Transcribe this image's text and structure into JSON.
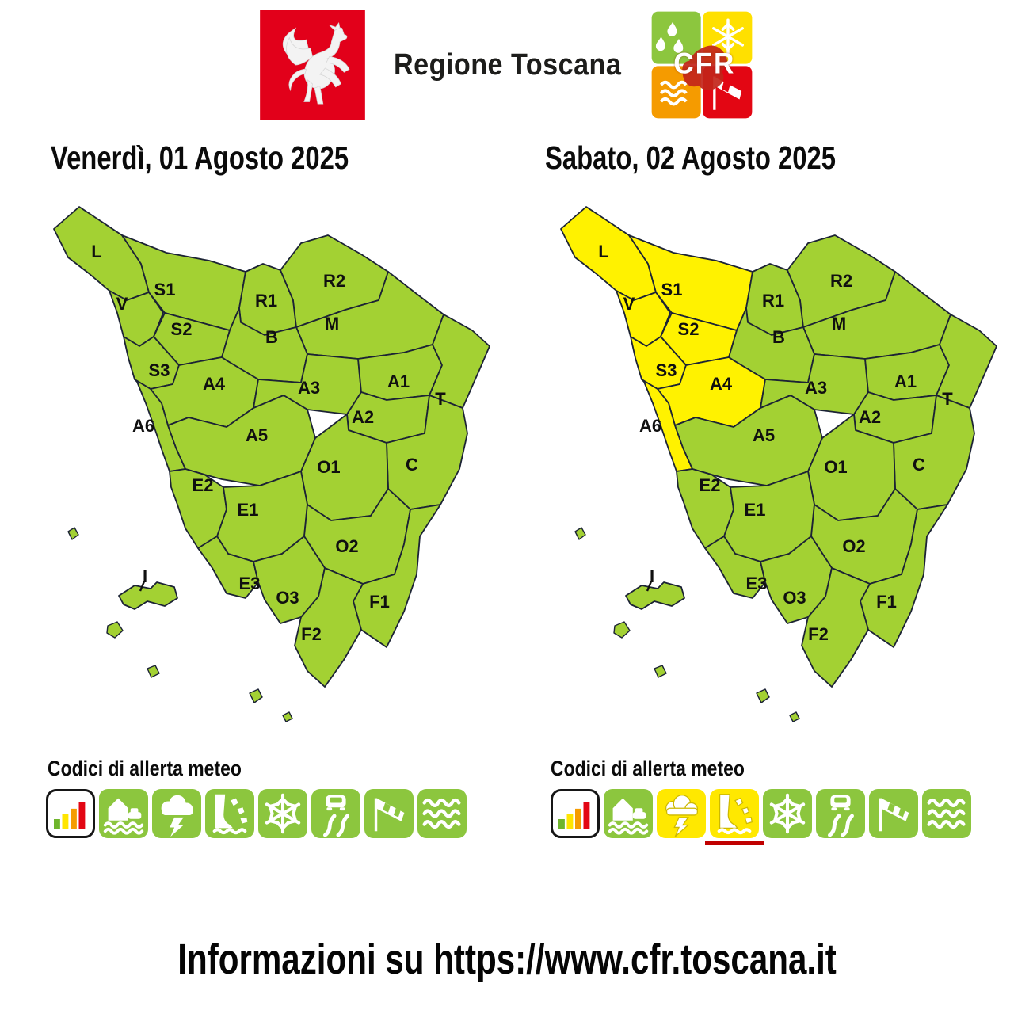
{
  "header": {
    "brand": "Regione Toscana",
    "cfr_label": "CFR"
  },
  "legend_title": "Codici di allerta meteo",
  "footer": {
    "text": "Informazioni su https://www.cfr.toscana.it"
  },
  "colors": {
    "zone_green": "#a3d133",
    "zone_yellow": "#fff200",
    "zone_border": "#1c2335",
    "icon_green": "#8cc63e",
    "icon_yellow": "#ffe800",
    "icon_glyph": "#ffffff",
    "icon_yellow_outline": "#cdb900",
    "underline_red": "#c00000",
    "logo_red": "#e2001a",
    "cfr_rain_green": "#8cc63e",
    "cfr_snow_yellow": "#ffe000",
    "cfr_waves_orange": "#f59b00",
    "cfr_wind_red": "#e30613",
    "cfr_silhouette": "#c2251a",
    "scale_bars": [
      "#6fb52c",
      "#ffe500",
      "#f59c00",
      "#e30613"
    ]
  },
  "zones": [
    "L",
    "V",
    "S1",
    "S2",
    "R1",
    "R2",
    "M",
    "B",
    "S3",
    "A4",
    "A3",
    "A1",
    "T",
    "A2",
    "C",
    "A6",
    "A5",
    "O1",
    "E2",
    "E1",
    "O2",
    "F1",
    "E3",
    "O3",
    "F2",
    "I"
  ],
  "icons": [
    {
      "id": "scale",
      "name": "alert-level-scale-icon"
    },
    {
      "id": "flood",
      "name": "hydraulic-flood-icon"
    },
    {
      "id": "storm",
      "name": "thunderstorm-icon"
    },
    {
      "id": "landslide",
      "name": "hydrogeological-landslide-icon"
    },
    {
      "id": "snow",
      "name": "snow-icon"
    },
    {
      "id": "ice",
      "name": "icy-road-icon"
    },
    {
      "id": "wind",
      "name": "windsock-icon"
    },
    {
      "id": "sea",
      "name": "sea-storm-icon"
    }
  ],
  "days": [
    {
      "title": "Venerdì, 01 Agosto 2025",
      "yellow_zones": [],
      "yellow_icons": [],
      "underlined_icons": []
    },
    {
      "title": "Sabato, 02 Agosto 2025",
      "yellow_zones": [
        "L",
        "V",
        "S1",
        "S2",
        "S3",
        "A4",
        "A6"
      ],
      "yellow_icons": [
        "storm",
        "landslide"
      ],
      "underlined_icons": [
        "landslide"
      ]
    }
  ]
}
